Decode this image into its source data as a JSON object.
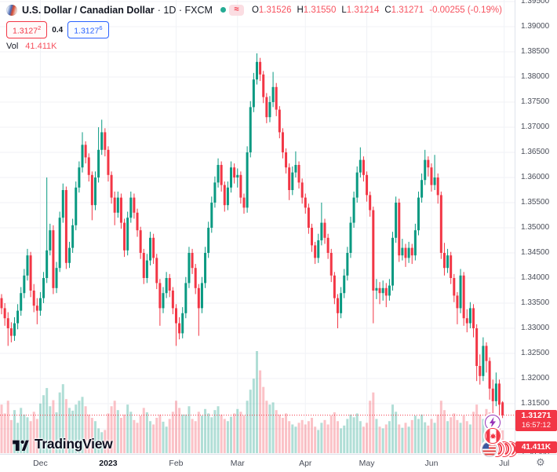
{
  "header": {
    "symbol_title": "U.S. Dollar / Canadian Dollar",
    "interval_and_exchange": "· 1D · FXCM",
    "approx_symbol": "≈",
    "ohlc": {
      "o_label": "O",
      "o": "1.31526",
      "h_label": "H",
      "h": "1.31550",
      "l_label": "L",
      "l": "1.31214",
      "c_label": "C",
      "c": "1.31271",
      "change": "-0.00255 (-0.19%)"
    },
    "bid": "1.3127",
    "bid_sup": "2",
    "spread": "0.4",
    "ask": "1.3127",
    "ask_sup": "6",
    "vol_label": "Vol",
    "vol_value": "41.411K"
  },
  "watermark": {
    "logo": "tradingview-logo",
    "text": "TradingView"
  },
  "axis": {
    "price_badge": {
      "price": "1.31271",
      "countdown": "16:57:12"
    },
    "volume_badge": "41.411K",
    "gear_icon": "⚙"
  },
  "icons": {
    "bottom_right": [
      "lightning-event-icon",
      "canada-flag-icon",
      "us-flag-icon",
      "event-coin-icons"
    ]
  },
  "colors": {
    "up": "#089981",
    "down": "#f23645",
    "up_volume": "rgba(8,153,129,0.32)",
    "down_volume": "rgba(242,54,69,0.30)",
    "grid": "#f0f2f6",
    "axis_text": "#4a4e59",
    "badge": "#f23645",
    "accent_blue": "#2962ff"
  },
  "chart_data": {
    "type": "candlestick+volume",
    "symbol": "USD/CAD",
    "interval": "1D",
    "exchange": "FXCM",
    "title": "U.S. Dollar / Canadian Dollar",
    "last_price": 1.31271,
    "ylim": [
      1.303,
      1.3955
    ],
    "price_gridlines": [
      1.305,
      1.31,
      1.315,
      1.32,
      1.325,
      1.33,
      1.335,
      1.34,
      1.345,
      1.35,
      1.355,
      1.36,
      1.365,
      1.37,
      1.375,
      1.38,
      1.385,
      1.39,
      1.395
    ],
    "months": [
      {
        "label": "Dec",
        "i": 12,
        "bold": false
      },
      {
        "label": "2023",
        "i": 33,
        "bold": true
      },
      {
        "label": "Feb",
        "i": 54,
        "bold": false
      },
      {
        "label": "Mar",
        "i": 73,
        "bold": false
      },
      {
        "label": "Apr",
        "i": 94,
        "bold": false
      },
      {
        "label": "May",
        "i": 113,
        "bold": false
      },
      {
        "label": "Jun",
        "i": 133,
        "bold": false
      },
      {
        "label": "Jul",
        "i": 155.5,
        "bold": false
      }
    ],
    "volume_unit": "K",
    "candles": [
      [
        1.336,
        1.3368,
        1.3328,
        1.334,
        88
      ],
      [
        1.334,
        1.335,
        1.3305,
        1.332,
        72
      ],
      [
        1.332,
        1.3332,
        1.3265,
        1.33,
        95
      ],
      [
        1.33,
        1.3312,
        1.3272,
        1.3285,
        60
      ],
      [
        1.3285,
        1.3322,
        1.3275,
        1.331,
        78
      ],
      [
        1.331,
        1.3348,
        1.3298,
        1.3335,
        55
      ],
      [
        1.3335,
        1.3382,
        1.3325,
        1.337,
        82
      ],
      [
        1.337,
        1.3418,
        1.336,
        1.3405,
        70
      ],
      [
        1.3405,
        1.3458,
        1.3395,
        1.3445,
        65
      ],
      [
        1.3445,
        1.3452,
        1.3362,
        1.3375,
        58
      ],
      [
        1.3375,
        1.3388,
        1.3332,
        1.3345,
        75
      ],
      [
        1.3345,
        1.336,
        1.3308,
        1.3335,
        62
      ],
      [
        1.3335,
        1.3372,
        1.3325,
        1.336,
        90
      ],
      [
        1.336,
        1.3412,
        1.335,
        1.34,
        105
      ],
      [
        1.34,
        1.36,
        1.339,
        1.3455,
        118
      ],
      [
        1.3455,
        1.3508,
        1.3445,
        1.3495,
        85
      ],
      [
        1.3495,
        1.3505,
        1.3368,
        1.338,
        96
      ],
      [
        1.338,
        1.3432,
        1.337,
        1.342,
        74
      ],
      [
        1.342,
        1.3532,
        1.3412,
        1.352,
        110
      ],
      [
        1.352,
        1.3588,
        1.351,
        1.3575,
        125
      ],
      [
        1.3575,
        1.3582,
        1.3418,
        1.343,
        98
      ],
      [
        1.343,
        1.3472,
        1.342,
        1.346,
        82
      ],
      [
        1.346,
        1.3518,
        1.345,
        1.3505,
        77
      ],
      [
        1.3505,
        1.3592,
        1.3495,
        1.358,
        88
      ],
      [
        1.358,
        1.3632,
        1.357,
        1.362,
        95
      ],
      [
        1.362,
        1.369,
        1.361,
        1.3665,
        102
      ],
      [
        1.3665,
        1.3672,
        1.3628,
        1.364,
        85
      ],
      [
        1.364,
        1.3648,
        1.3592,
        1.3605,
        70
      ],
      [
        1.3605,
        1.3612,
        1.3515,
        1.3545,
        64
      ],
      [
        1.3545,
        1.3612,
        1.3535,
        1.36,
        58
      ],
      [
        1.36,
        1.37,
        1.359,
        1.3655,
        45
      ],
      [
        1.3655,
        1.3715,
        1.3645,
        1.369,
        38
      ],
      [
        1.369,
        1.3698,
        1.3642,
        1.3655,
        42
      ],
      [
        1.3655,
        1.3662,
        1.3592,
        1.3605,
        72
      ],
      [
        1.3605,
        1.3612,
        1.3548,
        1.356,
        85
      ],
      [
        1.356,
        1.3572,
        1.3505,
        1.353,
        95
      ],
      [
        1.353,
        1.3572,
        1.352,
        1.356,
        78
      ],
      [
        1.356,
        1.3568,
        1.3498,
        1.351,
        64
      ],
      [
        1.351,
        1.3518,
        1.3442,
        1.3455,
        70
      ],
      [
        1.3455,
        1.3532,
        1.3445,
        1.352,
        88
      ],
      [
        1.352,
        1.3572,
        1.351,
        1.356,
        75
      ],
      [
        1.356,
        1.3568,
        1.3518,
        1.353,
        60
      ],
      [
        1.353,
        1.3538,
        1.3482,
        1.3495,
        55
      ],
      [
        1.3495,
        1.3502,
        1.3438,
        1.345,
        68
      ],
      [
        1.345,
        1.3458,
        1.3388,
        1.34,
        82
      ],
      [
        1.34,
        1.3448,
        1.339,
        1.3435,
        74
      ],
      [
        1.3435,
        1.3492,
        1.3425,
        1.348,
        58
      ],
      [
        1.348,
        1.3488,
        1.3428,
        1.344,
        52
      ],
      [
        1.344,
        1.3448,
        1.3378,
        1.339,
        64
      ],
      [
        1.339,
        1.3398,
        1.3305,
        1.334,
        70
      ],
      [
        1.334,
        1.3382,
        1.333,
        1.337,
        57
      ],
      [
        1.337,
        1.3412,
        1.336,
        1.34,
        48
      ],
      [
        1.34,
        1.3408,
        1.3362,
        1.3375,
        62
      ],
      [
        1.3375,
        1.3382,
        1.3328,
        1.334,
        75
      ],
      [
        1.334,
        1.3348,
        1.3265,
        1.331,
        95
      ],
      [
        1.331,
        1.3322,
        1.3278,
        1.329,
        82
      ],
      [
        1.329,
        1.3342,
        1.328,
        1.333,
        70
      ],
      [
        1.333,
        1.3402,
        1.332,
        1.339,
        70
      ],
      [
        1.339,
        1.3462,
        1.338,
        1.345,
        85
      ],
      [
        1.345,
        1.3458,
        1.3408,
        1.342,
        62
      ],
      [
        1.342,
        1.3428,
        1.3368,
        1.338,
        58
      ],
      [
        1.338,
        1.3388,
        1.3285,
        1.334,
        75
      ],
      [
        1.334,
        1.3402,
        1.333,
        1.339,
        68
      ],
      [
        1.339,
        1.3462,
        1.338,
        1.345,
        80
      ],
      [
        1.345,
        1.3512,
        1.344,
        1.35,
        72
      ],
      [
        1.35,
        1.3562,
        1.349,
        1.355,
        65
      ],
      [
        1.355,
        1.3602,
        1.354,
        1.359,
        78
      ],
      [
        1.359,
        1.3638,
        1.358,
        1.3625,
        85
      ],
      [
        1.3625,
        1.3632,
        1.3572,
        1.3585,
        70
      ],
      [
        1.3585,
        1.3592,
        1.3532,
        1.3545,
        62
      ],
      [
        1.3545,
        1.3592,
        1.3535,
        1.358,
        58
      ],
      [
        1.358,
        1.3632,
        1.357,
        1.362,
        66
      ],
      [
        1.362,
        1.3628,
        1.3588,
        1.36,
        72
      ],
      [
        1.36,
        1.3618,
        1.358,
        1.3605,
        80
      ],
      [
        1.3605,
        1.3612,
        1.3548,
        1.356,
        75
      ],
      [
        1.356,
        1.3568,
        1.3528,
        1.354,
        68
      ],
      [
        1.354,
        1.3662,
        1.353,
        1.365,
        95
      ],
      [
        1.365,
        1.3752,
        1.364,
        1.374,
        115
      ],
      [
        1.374,
        1.3808,
        1.373,
        1.3795,
        135
      ],
      [
        1.3795,
        1.3847,
        1.3785,
        1.383,
        185
      ],
      [
        1.383,
        1.3838,
        1.3792,
        1.3805,
        150
      ],
      [
        1.3805,
        1.3812,
        1.3748,
        1.376,
        120
      ],
      [
        1.376,
        1.3768,
        1.3708,
        1.372,
        95
      ],
      [
        1.372,
        1.3762,
        1.371,
        1.375,
        88
      ],
      [
        1.375,
        1.381,
        1.374,
        1.378,
        92
      ],
      [
        1.378,
        1.3788,
        1.3722,
        1.3735,
        78
      ],
      [
        1.3735,
        1.3742,
        1.3678,
        1.369,
        70
      ],
      [
        1.369,
        1.3698,
        1.3638,
        1.365,
        64
      ],
      [
        1.365,
        1.3658,
        1.3608,
        1.362,
        72
      ],
      [
        1.362,
        1.3628,
        1.3555,
        1.3575,
        58
      ],
      [
        1.3575,
        1.3622,
        1.3565,
        1.361,
        52
      ],
      [
        1.361,
        1.3652,
        1.36,
        1.3625,
        48
      ],
      [
        1.3625,
        1.3632,
        1.3578,
        1.359,
        55
      ],
      [
        1.359,
        1.3598,
        1.3548,
        1.356,
        60
      ],
      [
        1.356,
        1.3568,
        1.3528,
        1.354,
        52
      ],
      [
        1.354,
        1.3548,
        1.3488,
        1.35,
        58
      ],
      [
        1.35,
        1.3508,
        1.3452,
        1.3465,
        64
      ],
      [
        1.3465,
        1.3472,
        1.3428,
        1.344,
        48
      ],
      [
        1.344,
        1.3488,
        1.343,
        1.3475,
        42
      ],
      [
        1.3475,
        1.355,
        1.3465,
        1.351,
        55
      ],
      [
        1.351,
        1.3518,
        1.3468,
        1.348,
        60
      ],
      [
        1.348,
        1.3488,
        1.3438,
        1.345,
        52
      ],
      [
        1.345,
        1.3458,
        1.3392,
        1.3405,
        68
      ],
      [
        1.3405,
        1.3412,
        1.3348,
        1.336,
        74
      ],
      [
        1.336,
        1.3368,
        1.33,
        1.333,
        58
      ],
      [
        1.333,
        1.3382,
        1.332,
        1.337,
        45
      ],
      [
        1.337,
        1.3418,
        1.336,
        1.3405,
        50
      ],
      [
        1.3405,
        1.3462,
        1.3395,
        1.345,
        62
      ],
      [
        1.345,
        1.3522,
        1.344,
        1.351,
        70
      ],
      [
        1.351,
        1.3572,
        1.35,
        1.356,
        65
      ],
      [
        1.356,
        1.3622,
        1.355,
        1.361,
        72
      ],
      [
        1.361,
        1.366,
        1.36,
        1.3635,
        58
      ],
      [
        1.3635,
        1.3642,
        1.3592,
        1.3605,
        48
      ],
      [
        1.3605,
        1.3612,
        1.3552,
        1.3565,
        55
      ],
      [
        1.3565,
        1.3572,
        1.3522,
        1.3535,
        95
      ],
      [
        1.3535,
        1.3542,
        1.331,
        1.3375,
        110
      ],
      [
        1.3375,
        1.3398,
        1.3358,
        1.338,
        62
      ],
      [
        1.338,
        1.3392,
        1.3348,
        1.337,
        48
      ],
      [
        1.337,
        1.3395,
        1.3355,
        1.338,
        45
      ],
      [
        1.338,
        1.339,
        1.3342,
        1.3365,
        52
      ],
      [
        1.3365,
        1.3398,
        1.3355,
        1.3385,
        58
      ],
      [
        1.3385,
        1.3492,
        1.3375,
        1.348,
        88
      ],
      [
        1.348,
        1.3562,
        1.347,
        1.355,
        75
      ],
      [
        1.355,
        1.3558,
        1.3432,
        1.3445,
        52
      ],
      [
        1.3445,
        1.3478,
        1.3435,
        1.346,
        46
      ],
      [
        1.346,
        1.3468,
        1.3422,
        1.344,
        55
      ],
      [
        1.344,
        1.3472,
        1.343,
        1.346,
        48
      ],
      [
        1.346,
        1.3468,
        1.3428,
        1.3445,
        60
      ],
      [
        1.3445,
        1.3508,
        1.3435,
        1.3495,
        68
      ],
      [
        1.3495,
        1.3572,
        1.3485,
        1.356,
        62
      ],
      [
        1.356,
        1.3608,
        1.355,
        1.3595,
        70
      ],
      [
        1.3595,
        1.3655,
        1.3585,
        1.3635,
        56
      ],
      [
        1.3635,
        1.3642,
        1.3602,
        1.362,
        50
      ],
      [
        1.362,
        1.3628,
        1.3572,
        1.3585,
        62
      ],
      [
        1.3585,
        1.3645,
        1.3575,
        1.36,
        55
      ],
      [
        1.36,
        1.3608,
        1.3548,
        1.3565,
        70
      ],
      [
        1.3565,
        1.3572,
        1.3438,
        1.345,
        95
      ],
      [
        1.345,
        1.347,
        1.3405,
        1.342,
        78
      ],
      [
        1.342,
        1.3458,
        1.341,
        1.3445,
        58
      ],
      [
        1.3445,
        1.3452,
        1.3388,
        1.34,
        65
      ],
      [
        1.34,
        1.3408,
        1.3352,
        1.3365,
        72
      ],
      [
        1.3365,
        1.3372,
        1.3308,
        1.334,
        60
      ],
      [
        1.334,
        1.3418,
        1.333,
        1.3405,
        55
      ],
      [
        1.3405,
        1.3412,
        1.3305,
        1.332,
        68
      ],
      [
        1.332,
        1.3338,
        1.3292,
        1.331,
        58
      ],
      [
        1.331,
        1.3352,
        1.33,
        1.334,
        52
      ],
      [
        1.334,
        1.3348,
        1.3282,
        1.33,
        75
      ],
      [
        1.33,
        1.3308,
        1.3195,
        1.3225,
        88
      ],
      [
        1.3225,
        1.3248,
        1.3188,
        1.3205,
        70
      ],
      [
        1.3205,
        1.3282,
        1.3195,
        1.3265,
        62
      ],
      [
        1.3265,
        1.3272,
        1.3212,
        1.3235,
        80
      ],
      [
        1.3235,
        1.3242,
        1.3158,
        1.318,
        74
      ],
      [
        1.318,
        1.3198,
        1.3128,
        1.3155,
        66
      ],
      [
        1.3155,
        1.3212,
        1.3145,
        1.319,
        58
      ],
      [
        1.319,
        1.3198,
        1.3128,
        1.3148,
        50
      ],
      [
        1.31526,
        1.3155,
        1.31214,
        1.31271,
        41.411
      ]
    ]
  }
}
